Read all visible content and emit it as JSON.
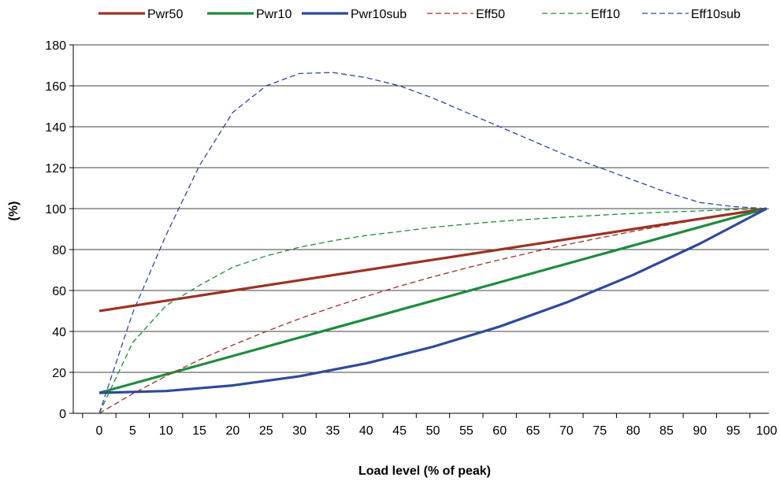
{
  "chart_data": {
    "type": "line",
    "xlabel": "Load level (% of peak)",
    "ylabel": "(%)",
    "ylim": [
      0,
      180
    ],
    "yticks": [
      0,
      20,
      40,
      60,
      80,
      100,
      120,
      140,
      160,
      180
    ],
    "xticks": [
      0,
      5,
      10,
      15,
      20,
      25,
      30,
      35,
      40,
      45,
      50,
      55,
      60,
      65,
      70,
      75,
      80,
      85,
      90,
      95,
      100
    ],
    "grid": true,
    "legend_position": "top",
    "series": [
      {
        "name": "Pwr50",
        "color": "#9b3324",
        "style": "solid",
        "x": [
          0,
          100
        ],
        "y": [
          50,
          100
        ]
      },
      {
        "name": "Pwr10",
        "color": "#1e8c3c",
        "style": "solid",
        "x": [
          0,
          100
        ],
        "y": [
          10,
          100
        ]
      },
      {
        "name": "Pwr10sub",
        "color": "#2e4a9b",
        "style": "solid",
        "x": [
          0,
          10,
          20,
          30,
          40,
          50,
          60,
          70,
          80,
          90,
          100
        ],
        "y": [
          10,
          10.9,
          13.6,
          18.1,
          24.4,
          32.5,
          42.4,
          54.1,
          67.6,
          82.9,
          100
        ]
      },
      {
        "name": "Eff50",
        "color": "#9b3324",
        "style": "dashed",
        "x": [
          0,
          5,
          10,
          15,
          20,
          25,
          30,
          35,
          40,
          45,
          50,
          55,
          60,
          65,
          70,
          75,
          80,
          85,
          90,
          95,
          100
        ],
        "y": [
          0,
          9.5,
          18.2,
          26.1,
          33.3,
          40,
          46.2,
          51.9,
          57.1,
          62.1,
          66.7,
          71,
          75,
          78.8,
          82.4,
          85.7,
          88.9,
          91.9,
          94.7,
          97.4,
          100
        ]
      },
      {
        "name": "Eff10",
        "color": "#1e8c3c",
        "style": "dashed",
        "x": [
          0,
          5,
          10,
          15,
          20,
          25,
          30,
          35,
          40,
          45,
          50,
          55,
          60,
          65,
          70,
          75,
          80,
          85,
          90,
          95,
          100
        ],
        "y": [
          0,
          34.5,
          52.6,
          62.5,
          71.4,
          76.9,
          81.1,
          84.3,
          86.9,
          88.8,
          90.9,
          92.4,
          93.8,
          94.9,
          95.9,
          96.8,
          97.6,
          98.3,
          98.9,
          99.5,
          100
        ]
      },
      {
        "name": "Eff10sub",
        "color": "#2e4a9b",
        "style": "dashed",
        "x": [
          0,
          5,
          10,
          15,
          20,
          25,
          30,
          35,
          40,
          45,
          50,
          55,
          60,
          65,
          70,
          75,
          80,
          85,
          90,
          95,
          100
        ],
        "y": [
          0,
          49,
          87,
          121,
          147,
          160,
          166,
          166.5,
          164,
          160,
          154,
          147,
          140,
          133,
          126,
          120,
          114,
          108,
          103,
          101,
          100
        ]
      }
    ]
  }
}
